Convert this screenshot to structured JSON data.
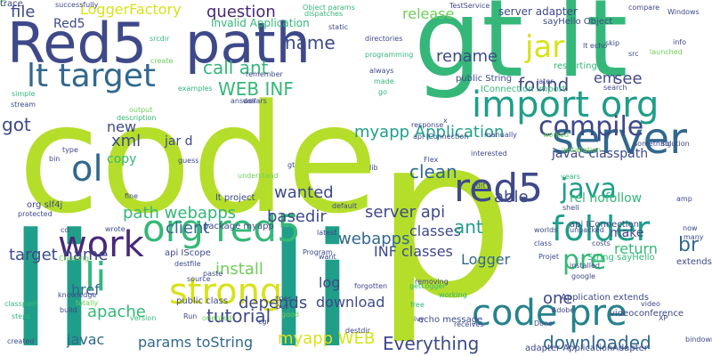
{
  "palette": {
    "lime": "#b5de2b",
    "green": "#35b779",
    "teal": "#1f9e89",
    "blue": "#26828e",
    "slate": "#31688e",
    "indigo": "#3e4989",
    "purple": "#482878",
    "dark": "#440154",
    "yellow": "#d8e219",
    "mint": "#6ece58"
  },
  "words": [
    {
      "t": "code",
      "c": "lime"
    },
    {
      "t": "p",
      "c": "lime"
    },
    {
      "t": "li",
      "c": "teal"
    },
    {
      "t": "li",
      "c": "teal"
    },
    {
      "t": "gt",
      "c": "green"
    },
    {
      "t": "lt",
      "c": "green"
    },
    {
      "t": "Red5",
      "c": "indigo"
    },
    {
      "t": "path",
      "c": "indigo"
    },
    {
      "t": "lt target",
      "c": "slate"
    },
    {
      "t": "import org",
      "c": "teal"
    },
    {
      "t": "code pre",
      "c": "blue"
    },
    {
      "t": "server",
      "c": "slate"
    },
    {
      "t": "red5",
      "c": "indigo"
    },
    {
      "t": "org red5",
      "c": "green"
    },
    {
      "t": "work",
      "c": "purple"
    },
    {
      "t": "strong",
      "c": "yellow"
    },
    {
      "t": "ol",
      "c": "slate"
    },
    {
      "t": "folder",
      "c": "teal"
    },
    {
      "t": "jar",
      "c": "yellow"
    },
    {
      "t": "compile",
      "c": "indigo"
    },
    {
      "t": "java",
      "c": "teal"
    },
    {
      "t": "li",
      "c": "green"
    },
    {
      "t": "pre",
      "c": "green"
    },
    {
      "t": "WEB INF",
      "c": "green"
    },
    {
      "t": "call ant",
      "c": "green"
    },
    {
      "t": "question",
      "c": "purple"
    },
    {
      "t": "file",
      "c": "indigo"
    },
    {
      "t": "LoggerFactory",
      "c": "yellow"
    },
    {
      "t": "name",
      "c": "indigo"
    },
    {
      "t": "release",
      "c": "mint"
    },
    {
      "t": "server adapter",
      "c": "indigo"
    },
    {
      "t": "sayHello Object",
      "c": "indigo"
    },
    {
      "t": "rename",
      "c": "indigo"
    },
    {
      "t": "found",
      "c": "indigo"
    },
    {
      "t": "em",
      "c": "indigo"
    },
    {
      "t": "see",
      "c": "indigo"
    },
    {
      "t": "clean",
      "c": "slate"
    },
    {
      "t": "server api",
      "c": "indigo"
    },
    {
      "t": "javac classpath",
      "c": "indigo"
    },
    {
      "t": "rel nofollow",
      "c": "green"
    },
    {
      "t": "br",
      "c": "slate"
    },
    {
      "t": "return",
      "c": "green"
    },
    {
      "t": "make",
      "c": "indigo"
    },
    {
      "t": "classes",
      "c": "indigo"
    },
    {
      "t": "INF classes",
      "c": "indigo"
    },
    {
      "t": "ant",
      "c": "teal"
    },
    {
      "t": "Logger",
      "c": "slate"
    },
    {
      "t": "log",
      "c": "indigo"
    },
    {
      "t": "download",
      "c": "indigo"
    },
    {
      "t": "one",
      "c": "indigo"
    },
    {
      "t": "Everything",
      "c": "indigo"
    },
    {
      "t": "myapp WEB",
      "c": "yellow"
    },
    {
      "t": "params toString",
      "c": "slate"
    },
    {
      "t": "javac",
      "c": "slate"
    },
    {
      "t": "tutorial",
      "c": "indigo"
    },
    {
      "t": "apache",
      "c": "green"
    },
    {
      "t": "depends",
      "c": "indigo"
    },
    {
      "t": "install",
      "c": "mint"
    },
    {
      "t": "path webapps",
      "c": "green"
    },
    {
      "t": "client",
      "c": "slate"
    },
    {
      "t": "href",
      "c": "slate"
    },
    {
      "t": "target name",
      "c": "indigo"
    },
    {
      "t": "basedir",
      "c": "indigo"
    },
    {
      "t": "wanted",
      "c": "indigo"
    },
    {
      "t": "myapp Application",
      "c": "teal"
    },
    {
      "t": "webapps",
      "c": "slate"
    },
    {
      "t": "able",
      "c": "indigo"
    },
    {
      "t": "xml",
      "c": "indigo"
    },
    {
      "t": "new",
      "c": "indigo"
    },
    {
      "t": "copy",
      "c": "green"
    },
    {
      "t": "jar d",
      "c": "indigo"
    },
    {
      "t": "got",
      "c": "indigo"
    },
    {
      "t": "Red5",
      "c": "indigo"
    },
    {
      "t": "Invalid Application",
      "c": "green"
    },
    {
      "t": "downloaded",
      "c": "slate"
    },
    {
      "t": "api IConnection",
      "c": "indigo"
    },
    {
      "t": "Application extends",
      "c": "indigo"
    },
    {
      "t": "videoconference",
      "c": "indigo"
    },
    {
      "t": "org slf4j",
      "c": "indigo"
    },
    {
      "t": "lt project",
      "c": "indigo"
    },
    {
      "t": "package myapp",
      "c": "indigo"
    },
    {
      "t": "api IScope",
      "c": "indigo"
    },
    {
      "t": "public class",
      "c": "indigo"
    },
    {
      "t": "extends ApplicationAdapter",
      "c": "indigo"
    },
    {
      "t": "adapter ApplicationAdapter",
      "c": "indigo"
    },
    {
      "t": "String sayHello",
      "c": "green"
    },
    {
      "t": "public String",
      "c": "indigo"
    },
    {
      "t": "IConnection import",
      "c": "green"
    },
    {
      "t": "echo message",
      "c": "indigo"
    },
    {
      "t": "TestService",
      "c": "indigo"
    },
    {
      "t": "Object params",
      "c": "green"
    },
    {
      "t": "dispatches",
      "c": "green"
    },
    {
      "t": "directories",
      "c": "indigo"
    },
    {
      "t": "programming",
      "c": "green"
    },
    {
      "t": "always",
      "c": "indigo"
    },
    {
      "t": "made",
      "c": "green"
    },
    {
      "t": "go",
      "c": "green"
    },
    {
      "t": "restarting",
      "c": "green"
    },
    {
      "t": "lt echo",
      "c": "indigo"
    },
    {
      "t": "skip",
      "c": "indigo"
    },
    {
      "t": "src",
      "c": "indigo"
    },
    {
      "t": "info",
      "c": "indigo"
    },
    {
      "t": "launched",
      "c": "mint"
    },
    {
      "t": "Windows",
      "c": "indigo"
    },
    {
      "t": "compare",
      "c": "indigo"
    },
    {
      "t": "later",
      "c": "indigo"
    },
    {
      "t": "search",
      "c": "indigo"
    },
    {
      "t": "response",
      "c": "indigo"
    },
    {
      "t": "api IConnection",
      "c": "indigo"
    },
    {
      "t": "manually",
      "c": "indigo"
    },
    {
      "t": "worked",
      "c": "mint"
    },
    {
      "t": "interested",
      "c": "indigo"
    },
    {
      "t": "Flex",
      "c": "indigo"
    },
    {
      "t": "installation",
      "c": "mint"
    },
    {
      "t": "something",
      "c": "indigo"
    },
    {
      "t": "solution",
      "c": "indigo"
    },
    {
      "t": "years",
      "c": "green"
    },
    {
      "t": "amp",
      "c": "indigo"
    },
    {
      "t": "shell",
      "c": "indigo"
    },
    {
      "t": "now",
      "c": "indigo"
    },
    {
      "t": "many",
      "c": "indigo"
    },
    {
      "t": "worlds",
      "c": "indigo"
    },
    {
      "t": "class",
      "c": "indigo"
    },
    {
      "t": "Projet",
      "c": "indigo"
    },
    {
      "t": "unpacked",
      "c": "indigo"
    },
    {
      "t": "costs",
      "c": "indigo"
    },
    {
      "t": "installed",
      "c": "indigo"
    },
    {
      "t": "google",
      "c": "indigo"
    },
    {
      "t": "video",
      "c": "indigo"
    },
    {
      "t": "XP",
      "c": "indigo"
    },
    {
      "t": "Adobe",
      "c": "indigo"
    },
    {
      "t": "bindownload",
      "c": "indigo"
    },
    {
      "t": "Done",
      "c": "indigo"
    },
    {
      "t": "free",
      "c": "green"
    },
    {
      "t": "receives",
      "c": "indigo"
    },
    {
      "t": "ivy",
      "c": "indigo"
    },
    {
      "t": "working",
      "c": "green"
    },
    {
      "t": "removing",
      "c": "indigo"
    },
    {
      "t": "getLogger",
      "c": "green"
    },
    {
      "t": "forgotten",
      "c": "indigo"
    },
    {
      "t": "want",
      "c": "indigo"
    },
    {
      "t": "Program",
      "c": "indigo"
    },
    {
      "t": "destdir",
      "c": "indigo"
    },
    {
      "t": "tries",
      "c": "indigo"
    },
    {
      "t": "put",
      "c": "indigo"
    },
    {
      "t": "good",
      "c": "mint"
    },
    {
      "t": "source",
      "c": "indigo"
    },
    {
      "t": "paste",
      "c": "indigo"
    },
    {
      "t": "oriented",
      "c": "mint"
    },
    {
      "t": "Run",
      "c": "indigo"
    },
    {
      "t": "version",
      "c": "green"
    },
    {
      "t": "cgi",
      "c": "indigo"
    },
    {
      "t": "destfile",
      "c": "indigo"
    },
    {
      "t": "latest",
      "c": "indigo"
    },
    {
      "t": "wrote",
      "c": "indigo"
    },
    {
      "t": "Creating",
      "c": "mint"
    },
    {
      "t": "knowledge",
      "c": "indigo"
    },
    {
      "t": "classpath",
      "c": "green"
    },
    {
      "t": "build",
      "c": "indigo"
    },
    {
      "t": "steps",
      "c": "green"
    },
    {
      "t": "created",
      "c": "indigo"
    },
    {
      "t": "totally",
      "c": "mint"
    },
    {
      "t": "protected",
      "c": "indigo"
    },
    {
      "t": "fine",
      "c": "indigo"
    },
    {
      "t": "understand",
      "c": "mint"
    },
    {
      "t": "default",
      "c": "indigo"
    },
    {
      "t": "guess",
      "c": "indigo"
    },
    {
      "t": "type",
      "c": "indigo"
    },
    {
      "t": "dollars",
      "c": "indigo"
    },
    {
      "t": "examples",
      "c": "green"
    },
    {
      "t": "stream",
      "c": "indigo"
    },
    {
      "t": "simple",
      "c": "green"
    },
    {
      "t": "output",
      "c": "mint"
    },
    {
      "t": "description",
      "c": "green"
    },
    {
      "t": "create",
      "c": "mint"
    },
    {
      "t": "srcdir",
      "c": "green"
    },
    {
      "t": "remember",
      "c": "indigo"
    },
    {
      "t": "static",
      "c": "indigo"
    },
    {
      "t": "successfully",
      "c": "indigo"
    },
    {
      "t": "answer",
      "c": "indigo"
    },
    {
      "t": "edit",
      "c": "indigo"
    },
    {
      "t": "lib",
      "c": "indigo"
    },
    {
      "t": "bin",
      "c": "indigo"
    },
    {
      "t": "cd",
      "c": "indigo"
    },
    {
      "t": "gt",
      "c": "indigo"
    },
    {
      "t": "x",
      "c": "indigo"
    },
    {
      "t": "C",
      "c": "mint"
    },
    {
      "t": "trace",
      "c": "indigo"
    }
  ]
}
